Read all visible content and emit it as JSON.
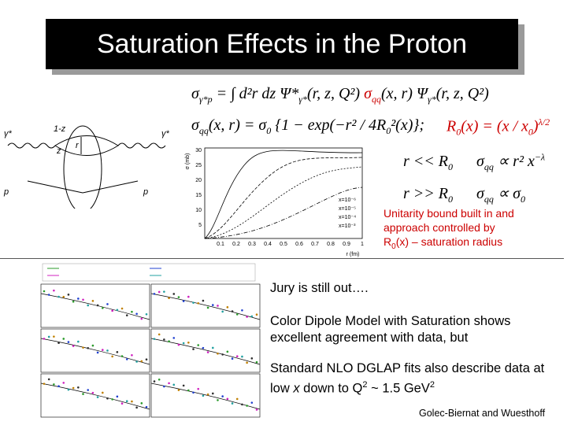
{
  "title": "Saturation Effects in the Proton",
  "equations": [
    [
      {
        "text": "σ"
      },
      {
        "text": "γ*p",
        "sub": true
      },
      {
        "text": " = ∫ d²r dz Ψ*"
      },
      {
        "text": "γ*",
        "sub": true
      },
      {
        "text": "(r, z, Q²) "
      },
      {
        "text": "σ",
        "color": "#cc0000"
      },
      {
        "text": "qq",
        "sub": true,
        "color": "#cc0000"
      },
      {
        "text": "(x, r) Ψ"
      },
      {
        "text": "γ*",
        "sub": true
      },
      {
        "text": "(r, z, Q²)"
      }
    ],
    [
      {
        "text": "σ"
      },
      {
        "text": "qq",
        "sub": true
      },
      {
        "text": "(x, r) = σ"
      },
      {
        "text": "0",
        "sub": true
      },
      {
        "text": " {1 − exp(−r² / 4R"
      },
      {
        "text": "0",
        "sub": true
      },
      {
        "text": "²(x)};"
      }
    ],
    [
      {
        "text": "R",
        "color": "#cc0000"
      },
      {
        "text": "0",
        "sub": true,
        "color": "#cc0000"
      },
      {
        "text": "(x) = (x / x",
        "color": "#cc0000"
      },
      {
        "text": "0",
        "sub": true,
        "color": "#cc0000"
      },
      {
        "text": ")",
        "color": "#cc0000"
      },
      {
        "text": "λ/2",
        "sup": true,
        "color": "#cc0000"
      }
    ],
    [
      {
        "text": "r << R"
      },
      {
        "text": "0",
        "sub": true
      },
      {
        "text": "      σ"
      },
      {
        "text": "qq",
        "sub": true
      },
      {
        "text": " ∝ r² x"
      },
      {
        "text": "−λ",
        "sup": true
      }
    ],
    [
      {
        "text": "r >> R"
      },
      {
        "text": "0",
        "sub": true
      },
      {
        "text": "      σ"
      },
      {
        "text": "qq",
        "sub": true
      },
      {
        "text": " ∝ σ"
      },
      {
        "text": "0",
        "sub": true
      }
    ]
  ],
  "diagram_labels": [
    "γ*",
    "1-z",
    "z",
    "r",
    "γ*",
    "p",
    "p"
  ],
  "dipole_plot": {
    "y_label": "σ (mb)",
    "y_ticks": [
      "30",
      "25",
      "20",
      "15",
      "10",
      "5"
    ],
    "x_label": "r (fm)",
    "x_ticks": [
      "0.1",
      "0.2",
      "0.3",
      "0.4",
      "0.5",
      "0.6",
      "0.7",
      "0.8",
      "0.9",
      "1"
    ],
    "legend": [
      "x=10⁻⁶",
      "x=10⁻⁵",
      "x=10⁻⁴",
      "x=10⁻³"
    ]
  },
  "callout": {
    "lines": [
      "Unitarity bound built in and",
      "approach controlled by"
    ],
    "last": [
      "R",
      "0",
      "(x) – saturation radius"
    ]
  },
  "bullets": {
    "b1": "Jury is still out….",
    "b2": "Color Dipole Model with Saturation shows excellent agreement with data, but",
    "b3": [
      "Standard NLO DGLAP fits also describe data at low ",
      "x",
      " down to Q",
      "2",
      " ~ 1.5 GeV",
      "2"
    ]
  },
  "credit": "Golec-Biernat and Wuesthoff"
}
